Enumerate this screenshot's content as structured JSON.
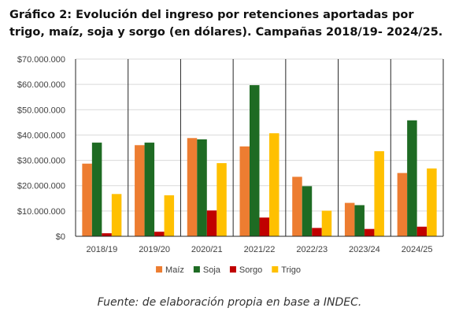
{
  "chart_data": {
    "type": "bar",
    "title": "Gráfico 2: Evolución del ingreso por retenciones aportadas por trigo, maíz, soja y sorgo (en dólares). Campañas 2018/19- 2024/25.",
    "categories": [
      "2018/19",
      "2019/20",
      "2020/21",
      "2021/22",
      "2022/23",
      "2023/24",
      "2024/25"
    ],
    "series": [
      {
        "name": "Maíz",
        "color": "#ED7D31",
        "values": [
          28700000,
          36000000,
          38800000,
          35500000,
          23500000,
          13200000,
          25000000
        ]
      },
      {
        "name": "Soja",
        "color": "#1E6B23",
        "values": [
          37000000,
          37000000,
          38300000,
          59700000,
          19800000,
          12300000,
          45800000
        ]
      },
      {
        "name": "Sorgo",
        "color": "#C00000",
        "values": [
          1200000,
          1800000,
          10200000,
          7400000,
          3300000,
          2900000,
          3800000
        ]
      },
      {
        "name": "Trigo",
        "color": "#FFC000",
        "values": [
          16700000,
          16200000,
          28900000,
          40700000,
          10100000,
          33600000,
          26800000
        ]
      }
    ],
    "yticks": [
      "$0",
      "$10.000.000",
      "$20.000.000",
      "$30.000.000",
      "$40.000.000",
      "$50.000.000",
      "$60.000.000",
      "$70.000.000"
    ],
    "ylim": [
      0,
      70000000
    ],
    "ystep": 10000000,
    "grid": true,
    "legend": "bottom"
  },
  "source": "Fuente: de elaboración propia en base a INDEC."
}
